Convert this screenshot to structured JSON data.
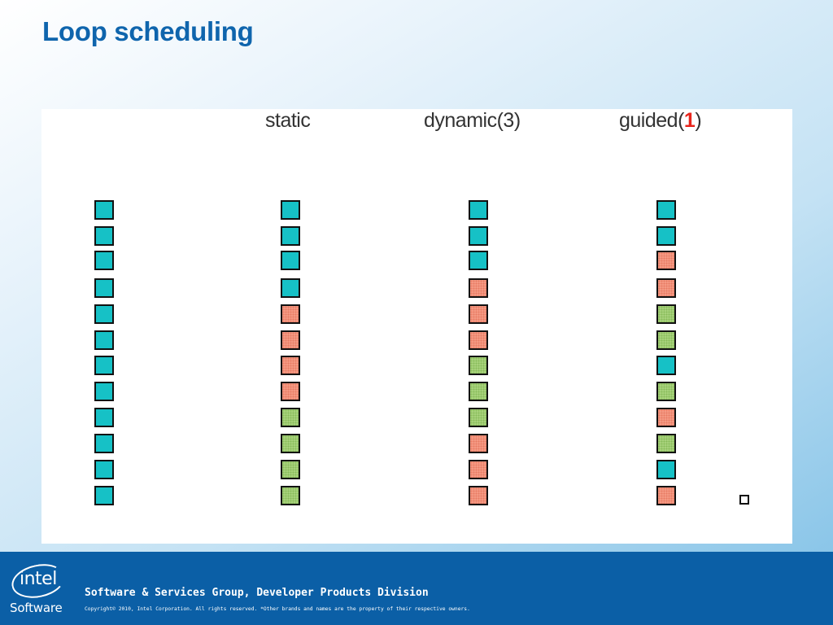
{
  "slide": {
    "title": "Loop scheduling"
  },
  "diagram": {
    "columns": [
      {
        "header": "",
        "header_suffix": "",
        "cells": [
          "teal",
          "teal",
          "teal",
          "teal",
          "teal",
          "teal",
          "teal",
          "teal",
          "teal",
          "teal",
          "teal",
          "teal"
        ]
      },
      {
        "header": "static",
        "header_suffix": "",
        "cells": [
          "teal",
          "teal",
          "teal",
          "teal",
          "salmon",
          "salmon",
          "salmon",
          "salmon",
          "green",
          "green",
          "green",
          "green"
        ]
      },
      {
        "header": "dynamic(3)",
        "header_suffix": "",
        "cells": [
          "teal",
          "teal",
          "teal",
          "salmon",
          "salmon",
          "salmon",
          "green",
          "green",
          "green",
          "salmon",
          "salmon",
          "salmon"
        ]
      },
      {
        "header": "guided(",
        "header_highlight": "1",
        "header_suffix": ")",
        "cells": [
          "teal",
          "teal",
          "salmon",
          "salmon",
          "green",
          "green",
          "teal",
          "green",
          "salmon",
          "green",
          "teal",
          "salmon"
        ]
      }
    ],
    "colors": {
      "teal": "#16c1c6",
      "salmon": "#f49a84",
      "green": "#a8d27c",
      "highlight": "#e8251c"
    }
  },
  "footer": {
    "logo_word": "intel",
    "logo_sub": "Software",
    "group": "Software & Services Group, Developer Products Division",
    "copyright": "Copyright© 2010, Intel Corporation. All rights reserved. *Other brands and names are the property of their respective owners."
  }
}
